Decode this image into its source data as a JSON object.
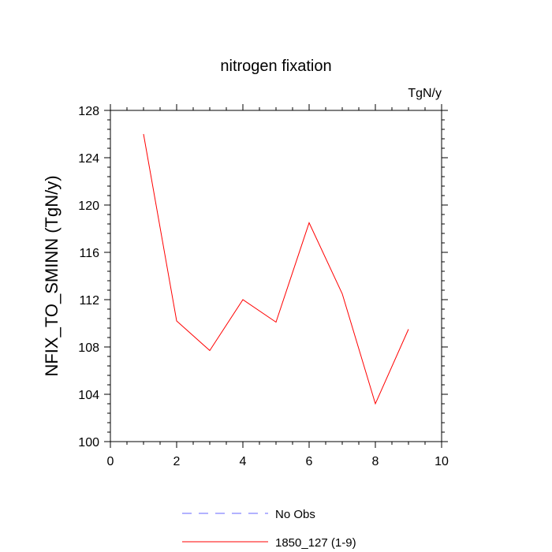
{
  "chart_data": {
    "type": "line",
    "title": "nitrogen fixation",
    "units_label": "TgN/y",
    "xlabel": "",
    "ylabel": "NFIX_TO_SMINN  (TgN/y)",
    "xlim": [
      0,
      10
    ],
    "ylim": [
      100,
      128
    ],
    "x_ticks": [
      0,
      2,
      4,
      6,
      8,
      10
    ],
    "y_ticks": [
      100,
      104,
      108,
      112,
      116,
      120,
      124,
      128
    ],
    "grid": false,
    "legend_position": "bottom",
    "series": [
      {
        "name": "1850_127 (1-9)",
        "color": "#ff0000",
        "style": "solid",
        "x": [
          1,
          2,
          3,
          4,
          5,
          6,
          7,
          8,
          9
        ],
        "y": [
          126.0,
          110.2,
          107.7,
          112.0,
          110.1,
          118.5,
          112.5,
          103.2,
          109.5
        ]
      }
    ],
    "legend": [
      {
        "label": "No Obs",
        "color": "#6666ff",
        "style": "dashed"
      },
      {
        "label": "1850_127 (1-9)",
        "color": "#ff0000",
        "style": "solid"
      }
    ]
  }
}
